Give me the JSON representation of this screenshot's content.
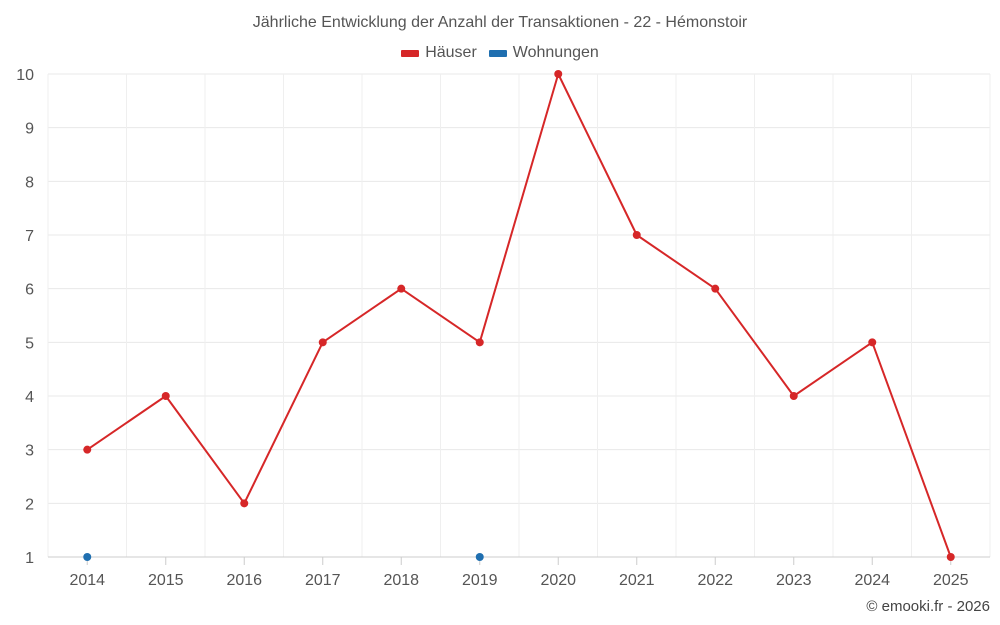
{
  "chart_data": {
    "type": "line",
    "title": "Jährliche Entwicklung der Anzahl der Transaktionen - 22 - Hémonstoir",
    "x": [
      2014,
      2015,
      2016,
      2017,
      2018,
      2019,
      2020,
      2021,
      2022,
      2023,
      2024,
      2025
    ],
    "series": [
      {
        "name": "Häuser",
        "color": "#d62728",
        "points": [
          {
            "x": 2014,
            "y": 3
          },
          {
            "x": 2015,
            "y": 4
          },
          {
            "x": 2016,
            "y": 2
          },
          {
            "x": 2017,
            "y": 5
          },
          {
            "x": 2018,
            "y": 6
          },
          {
            "x": 2019,
            "y": 5
          },
          {
            "x": 2020,
            "y": 10
          },
          {
            "x": 2021,
            "y": 7
          },
          {
            "x": 2022,
            "y": 6
          },
          {
            "x": 2023,
            "y": 4
          },
          {
            "x": 2024,
            "y": 5
          },
          {
            "x": 2025,
            "y": 1
          }
        ]
      },
      {
        "name": "Wohnungen",
        "color": "#1f6fb0",
        "points": [
          {
            "x": 2014,
            "y": 1
          },
          {
            "x": 2019,
            "y": 1
          }
        ]
      }
    ],
    "ylim": [
      1,
      10
    ],
    "yticks": [
      1,
      2,
      3,
      4,
      5,
      6,
      7,
      8,
      9,
      10
    ],
    "xlabel": "",
    "ylabel": "",
    "grid": true,
    "legend_position": "top-center"
  },
  "footer": {
    "copyright": "© emooki.fr - 2026"
  }
}
